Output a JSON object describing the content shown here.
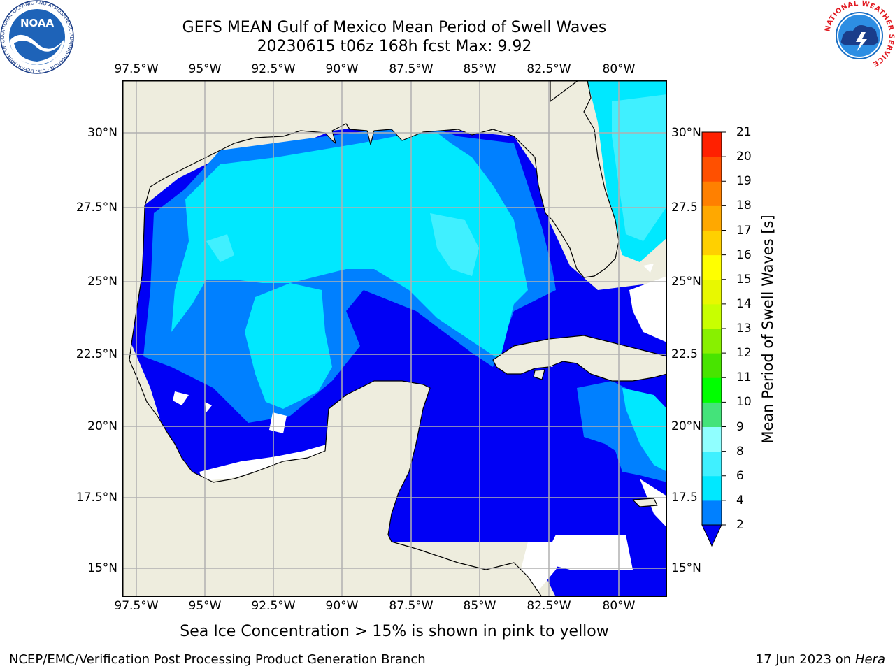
{
  "title": {
    "line1": "GEFS MEAN Gulf of Mexico Mean Period of Swell Waves",
    "line2": "20230615 t06z 168h fcst   Max: 9.92"
  },
  "axes": {
    "lon_labels": [
      "97.5°W",
      "95°W",
      "92.5°W",
      "90°W",
      "87.5°W",
      "85°W",
      "82.5°W",
      "80°W"
    ],
    "lat_labels_left": [
      "30°N",
      "27.5°N",
      "25°N",
      "22.5°N",
      "20°N",
      "17.5°N",
      "15°N"
    ],
    "lat_labels_right": [
      "30°N",
      "27.5",
      "25°N",
      "22.5",
      "20°N",
      "17.5",
      "15°N"
    ]
  },
  "colorbar": {
    "title": "Mean Period of Swell Waves [s]",
    "levels": [
      "2",
      "4",
      "6",
      "8",
      "9",
      "10",
      "11",
      "12",
      "13",
      "14",
      "15",
      "16",
      "17",
      "18",
      "19",
      "20",
      "21"
    ],
    "colors": [
      "#0000f5",
      "#0080ff",
      "#00e8ff",
      "#40f0ff",
      "#90ffff",
      "#44e37a",
      "#00ff00",
      "#48e400",
      "#88f000",
      "#c8ff00",
      "#e8f800",
      "#ffff00",
      "#ffd000",
      "#ffa800",
      "#ff8000",
      "#ff5000",
      "#ff2000",
      "#ff0000"
    ]
  },
  "map": {
    "land_color": "#eeedde",
    "ocean_colors": {
      "lt2": "#0000f5",
      "2_4": "#0080ff",
      "4_6": "#00e8ff",
      "6_8": "#40f0ff",
      "8_9": "#90ffff",
      "9_10": "#44e37a",
      "missing": "#ffffff"
    }
  },
  "note": "Sea Ice Concentration > 15% is shown in pink to yellow",
  "footer": {
    "left": "NCEP/EMC/Verification Post Processing Product Generation Branch",
    "right_prefix": "17 Jun 2023 on",
    "right_host": "Hera"
  },
  "logos": {
    "noaa": {
      "text": "NOAA",
      "ring": "NATIONAL OCEANIC AND ATMOSPHERIC ADMINISTRATION · U.S. DEPARTMENT OF COMMERCE"
    },
    "nws": {
      "ring": "NATIONAL WEATHER SERVICE"
    }
  }
}
